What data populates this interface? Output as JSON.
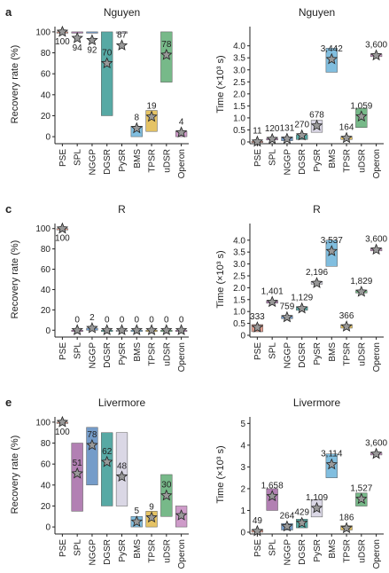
{
  "chart_data": [
    {
      "type": "box",
      "panel_label": "a",
      "title": "Nguyen",
      "ylabel": "Recovery rate (%)",
      "categories": [
        "PSE",
        "SPL",
        "NGGP",
        "DGSR",
        "PySR",
        "BMS",
        "TPSR",
        "uDSR",
        "Operon"
      ],
      "colors": [
        "#d98c7a",
        "#a46aa6",
        "#5d8bc0",
        "#3a9a94",
        "#d4d0e0",
        "#6bb3d9",
        "#e0b84a",
        "#5fad74",
        "#c58ac0"
      ],
      "ylim": [
        -5,
        105
      ],
      "yticks": [
        0,
        20,
        40,
        60,
        80,
        100
      ],
      "q1": [
        100,
        100,
        100,
        20,
        100,
        0,
        5,
        52,
        0
      ],
      "q3": [
        100,
        100,
        100,
        100,
        100,
        10,
        25,
        100,
        5
      ],
      "values": [
        100,
        94,
        92,
        70,
        87,
        8,
        19,
        78,
        4
      ]
    },
    {
      "type": "box",
      "title": "Nguyen",
      "ylabel": "Time (×10³ s)",
      "categories": [
        "PSE",
        "SPL",
        "NGGP",
        "DGSR",
        "PySR",
        "BMS",
        "TPSR",
        "uDSR",
        "Operon"
      ],
      "colors": [
        "#d98c7a",
        "#a46aa6",
        "#5d8bc0",
        "#3a9a94",
        "#d4d0e0",
        "#6bb3d9",
        "#e0b84a",
        "#5fad74",
        "#c58ac0"
      ],
      "ylim": [
        0,
        4.8
      ],
      "yticks": [
        0,
        0.5,
        {
          "value": 1,
          "label": "1.0"
        },
        1.5,
        {
          "value": 2,
          "label": "2.0"
        },
        2.5,
        {
          "value": 3,
          "label": "3.0"
        },
        3.5,
        {
          "value": 4,
          "label": "4.0"
        }
      ],
      "q1": [
        0,
        0.08,
        0.05,
        0.1,
        0.4,
        2.9,
        0.1,
        0.6,
        3.55
      ],
      "q3": [
        0.03,
        0.15,
        0.2,
        0.3,
        0.9,
        3.9,
        0.2,
        1.4,
        3.65
      ],
      "values": [
        0.011,
        0.12,
        0.131,
        0.27,
        0.678,
        3.442,
        0.164,
        1.059,
        3.6
      ],
      "value_labels": [
        "11",
        "120",
        "131",
        "270",
        "678",
        "3,442",
        "164",
        "1,059",
        "3,600"
      ]
    },
    {
      "type": "box",
      "panel_label": "c",
      "title": "R",
      "ylabel": "Recovery rate (%)",
      "categories": [
        "PSE",
        "SPL",
        "NGGP",
        "DGSR",
        "PySR",
        "BMS",
        "TPSR",
        "uDSR",
        "Operon"
      ],
      "colors": [
        "#d98c7a",
        "#a46aa6",
        "#5d8bc0",
        "#3a9a94",
        "#d4d0e0",
        "#6bb3d9",
        "#e0b84a",
        "#5fad74",
        "#c58ac0"
      ],
      "ylim": [
        -5,
        105
      ],
      "yticks": [
        0,
        20,
        40,
        60,
        80,
        100
      ],
      "q1": [
        100,
        0,
        0,
        0,
        0,
        0,
        0,
        0,
        0
      ],
      "q3": [
        100,
        0,
        2,
        0,
        0,
        0,
        0,
        0,
        0
      ],
      "values": [
        100,
        0,
        2,
        0,
        0,
        0,
        0,
        0,
        0
      ]
    },
    {
      "type": "box",
      "title": "R",
      "ylabel": "Time (×10³ s)",
      "categories": [
        "PSE",
        "SPL",
        "NGGP",
        "DGSR",
        "PySR",
        "BMS",
        "TPSR",
        "uDSR",
        "Operon"
      ],
      "colors": [
        "#d98c7a",
        "#a46aa6",
        "#5d8bc0",
        "#3a9a94",
        "#d4d0e0",
        "#6bb3d9",
        "#e0b84a",
        "#5fad74",
        "#c58ac0"
      ],
      "ylim": [
        0,
        4.7
      ],
      "yticks": [
        0,
        0.5,
        {
          "value": 1,
          "label": "1.0"
        },
        1.5,
        {
          "value": 2,
          "label": "2.0"
        },
        2.5,
        {
          "value": 3,
          "label": "3.0"
        },
        3.5,
        {
          "value": 4,
          "label": "4.0"
        }
      ],
      "q1": [
        0.15,
        1.35,
        0.7,
        1.05,
        2.15,
        2.9,
        0.3,
        1.78,
        3.55
      ],
      "q3": [
        0.45,
        1.45,
        0.8,
        1.2,
        2.25,
        4.0,
        0.45,
        1.88,
        3.65
      ],
      "values": [
        0.333,
        1.401,
        0.759,
        1.129,
        2.196,
        3.537,
        0.366,
        1.829,
        3.6
      ],
      "value_labels": [
        "333",
        "1,401",
        "759",
        "1,129",
        "2,196",
        "3,537",
        "366",
        "1,829",
        "3,600"
      ]
    },
    {
      "type": "box",
      "panel_label": "e",
      "title": "Livermore",
      "ylabel": "Recovery rate (%)",
      "categories": [
        "PSE",
        "SPL",
        "NGGP",
        "DGSR",
        "PySR",
        "BMS",
        "TPSR",
        "uDSR",
        "Operon"
      ],
      "colors": [
        "#d98c7a",
        "#a46aa6",
        "#5d8bc0",
        "#3a9a94",
        "#d4d0e0",
        "#6bb3d9",
        "#e0b84a",
        "#5fad74",
        "#c58ac0"
      ],
      "ylim": [
        -5,
        105
      ],
      "yticks": [
        0,
        20,
        40,
        60,
        80,
        100
      ],
      "q1": [
        100,
        15,
        40,
        20,
        20,
        0,
        0,
        10,
        0
      ],
      "q3": [
        100,
        80,
        95,
        90,
        90,
        10,
        15,
        50,
        20
      ],
      "values": [
        100,
        51,
        78,
        62,
        48,
        5,
        9,
        30,
        11
      ],
      "value_labels": [
        "100",
        "51",
        "78",
        "62",
        "48",
        "5",
        "9",
        "30",
        null
      ]
    },
    {
      "type": "box",
      "title": "Livermore",
      "ylabel": "Time (×10³ s)",
      "categories": [
        "PSE",
        "SPL",
        "NGGP",
        "DGSR",
        "PySR",
        "BMS",
        "TPSR",
        "uDSR",
        "Operon"
      ],
      "colors": [
        "#d98c7a",
        "#a46aa6",
        "#5d8bc0",
        "#3a9a94",
        "#d4d0e0",
        "#6bb3d9",
        "#e0b84a",
        "#5fad74",
        "#c58ac0"
      ],
      "ylim": [
        0,
        5.3
      ],
      "yticks": [
        0,
        1,
        2,
        3,
        4,
        5
      ],
      "q1": [
        0,
        1.0,
        0.1,
        0.2,
        0.7,
        2.5,
        0.1,
        1.2,
        3.55
      ],
      "q3": [
        0.1,
        2.0,
        0.4,
        0.6,
        1.5,
        3.6,
        0.3,
        1.8,
        3.65
      ],
      "values": [
        0.049,
        1.658,
        0.264,
        0.429,
        1.109,
        3.114,
        0.186,
        1.527,
        3.6
      ],
      "value_labels": [
        "49",
        "1,658",
        "264",
        "429",
        "1,109",
        "3,114",
        "186",
        "1,527",
        "3,600"
      ]
    }
  ]
}
